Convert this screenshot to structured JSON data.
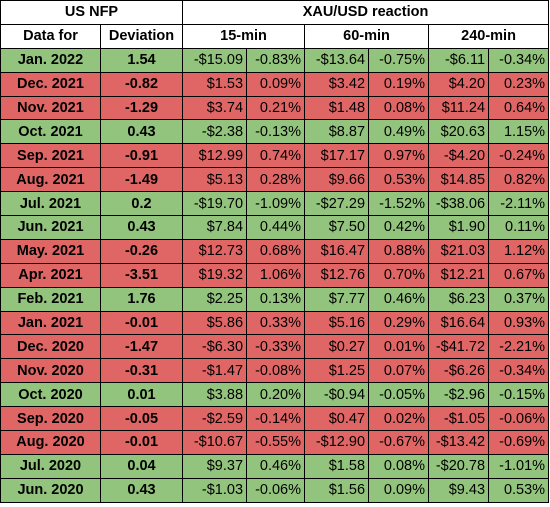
{
  "header": {
    "group_left": "US NFP",
    "group_right": "XAU/USD reaction",
    "col_date": "Data for",
    "col_deviation": "Deviation",
    "col_15": "15-min",
    "col_60": "60-min",
    "col_240": "240-min"
  },
  "colors": {
    "positive": "#93c47d",
    "negative": "#e06666"
  },
  "rows": [
    {
      "date": "Jan. 2022",
      "deviation": "1.54",
      "d15": "-$15.09",
      "p15": "-0.83%",
      "d60": "-$13.64",
      "p60": "-0.75%",
      "d240": "-$6.11",
      "p240": "-0.34%"
    },
    {
      "date": "Dec. 2021",
      "deviation": "-0.82",
      "d15": "$1.53",
      "p15": "0.09%",
      "d60": "$3.42",
      "p60": "0.19%",
      "d240": "$4.20",
      "p240": "0.23%"
    },
    {
      "date": "Nov. 2021",
      "deviation": "-1.29",
      "d15": "$3.74",
      "p15": "0.21%",
      "d60": "$1.48",
      "p60": "0.08%",
      "d240": "$11.24",
      "p240": "0.64%"
    },
    {
      "date": "Oct. 2021",
      "deviation": "0.43",
      "d15": "-$2.38",
      "p15": "-0.13%",
      "d60": "$8.87",
      "p60": "0.49%",
      "d240": "$20.63",
      "p240": "1.15%"
    },
    {
      "date": "Sep. 2021",
      "deviation": "-0.91",
      "d15": "$12.99",
      "p15": "0.74%",
      "d60": "$17.17",
      "p60": "0.97%",
      "d240": "-$4.20",
      "p240": "-0.24%"
    },
    {
      "date": "Aug. 2021",
      "deviation": "-1.49",
      "d15": "$5.13",
      "p15": "0.28%",
      "d60": "$9.66",
      "p60": "0.53%",
      "d240": "$14.85",
      "p240": "0.82%"
    },
    {
      "date": "Jul. 2021",
      "deviation": "0.2",
      "d15": "-$19.70",
      "p15": "-1.09%",
      "d60": "-$27.29",
      "p60": "-1.52%",
      "d240": "-$38.06",
      "p240": "-2.11%"
    },
    {
      "date": "Jun. 2021",
      "deviation": "0.43",
      "d15": "$7.84",
      "p15": "0.44%",
      "d60": "$7.50",
      "p60": "0.42%",
      "d240": "$1.90",
      "p240": "0.11%"
    },
    {
      "date": "May. 2021",
      "deviation": "-0.26",
      "d15": "$12.73",
      "p15": "0.68%",
      "d60": "$16.47",
      "p60": "0.88%",
      "d240": "$21.03",
      "p240": "1.12%"
    },
    {
      "date": "Apr. 2021",
      "deviation": "-3.51",
      "d15": "$19.32",
      "p15": "1.06%",
      "d60": "$12.76",
      "p60": "0.70%",
      "d240": "$12.21",
      "p240": "0.67%"
    },
    {
      "date": "Feb. 2021",
      "deviation": "1.76",
      "d15": "$2.25",
      "p15": "0.13%",
      "d60": "$7.77",
      "p60": "0.46%",
      "d240": "$6.23",
      "p240": "0.37%"
    },
    {
      "date": "Jan. 2021",
      "deviation": "-0.01",
      "d15": "$5.86",
      "p15": "0.33%",
      "d60": "$5.16",
      "p60": "0.29%",
      "d240": "$16.64",
      "p240": "0.93%"
    },
    {
      "date": "Dec. 2020",
      "deviation": "-1.47",
      "d15": "-$6.30",
      "p15": "-0.33%",
      "d60": "$0.27",
      "p60": "0.01%",
      "d240": "-$41.72",
      "p240": "-2.21%"
    },
    {
      "date": "Nov. 2020",
      "deviation": "-0.31",
      "d15": "-$1.47",
      "p15": "-0.08%",
      "d60": "$1.25",
      "p60": "0.07%",
      "d240": "-$6.26",
      "p240": "-0.34%"
    },
    {
      "date": "Oct. 2020",
      "deviation": "0.01",
      "d15": "$3.88",
      "p15": "0.20%",
      "d60": "-$0.94",
      "p60": "-0.05%",
      "d240": "-$2.96",
      "p240": "-0.15%"
    },
    {
      "date": "Sep. 2020",
      "deviation": "-0.05",
      "d15": "-$2.59",
      "p15": "-0.14%",
      "d60": "$0.47",
      "p60": "0.02%",
      "d240": "-$1.05",
      "p240": "-0.06%"
    },
    {
      "date": "Aug. 2020",
      "deviation": "-0.01",
      "d15": "-$10.67",
      "p15": "-0.55%",
      "d60": "-$12.90",
      "p60": "-0.67%",
      "d240": "-$13.42",
      "p240": "-0.69%"
    },
    {
      "date": "Jul. 2020",
      "deviation": "0.04",
      "d15": "$9.37",
      "p15": "0.46%",
      "d60": "$1.58",
      "p60": "0.08%",
      "d240": "-$20.78",
      "p240": "-1.01%"
    },
    {
      "date": "Jun. 2020",
      "deviation": "0.43",
      "d15": "-$1.03",
      "p15": "-0.06%",
      "d60": "$1.56",
      "p60": "0.09%",
      "d240": "$9.43",
      "p240": "0.53%"
    }
  ]
}
